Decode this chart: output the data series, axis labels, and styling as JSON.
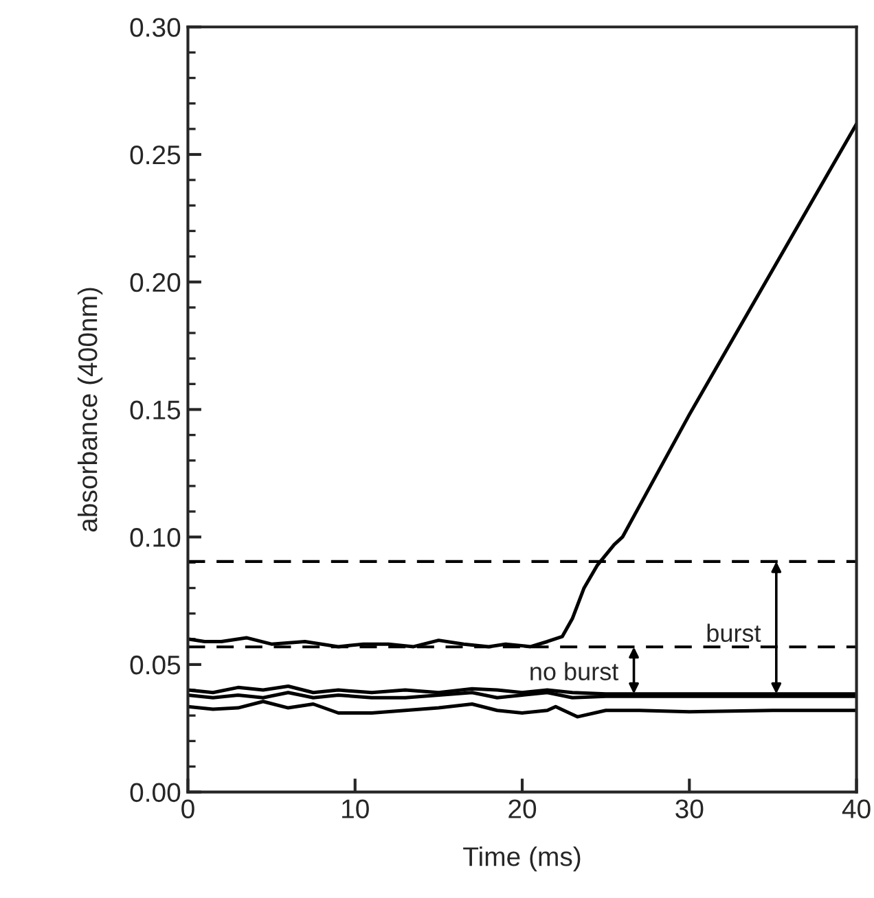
{
  "chart_data": {
    "type": "line",
    "xlabel": "Time (ms)",
    "ylabel": "absorbance (400nm)",
    "xlim": [
      0,
      40
    ],
    "ylim": [
      0,
      0.3
    ],
    "xticks": [
      0,
      10,
      20,
      30,
      40
    ],
    "yticks": [
      {
        "value": 0,
        "label": "0.00"
      },
      {
        "value": 0.05,
        "label": "0.05"
      },
      {
        "value": 0.1,
        "label": "0.10"
      },
      {
        "value": 0.15,
        "label": "0.15"
      },
      {
        "value": 0.2,
        "label": "0.20"
      },
      {
        "value": 0.25,
        "label": "0.25"
      },
      {
        "value": 0.3,
        "label": "0.30"
      }
    ],
    "grid": false,
    "marker": "none",
    "line_style": "solid",
    "series": [
      {
        "color": "#000000",
        "x": [
          0,
          1,
          2,
          3.5,
          5,
          7,
          9,
          10.5,
          12,
          13.5,
          15,
          16.5,
          18,
          19,
          20.5,
          21.5,
          22.4,
          23,
          23.7,
          24.5,
          25.5,
          26,
          27,
          30,
          35,
          40
        ],
        "values": [
          0.06,
          0.059,
          0.059,
          0.0605,
          0.058,
          0.059,
          0.057,
          0.058,
          0.058,
          0.057,
          0.0595,
          0.058,
          0.057,
          0.058,
          0.057,
          0.059,
          0.061,
          0.068,
          0.08,
          0.089,
          0.097,
          0.1,
          0.112,
          0.148,
          0.205,
          0.262
        ]
      },
      {
        "color": "#000000",
        "x": [
          0,
          1.5,
          3,
          4.5,
          6,
          7.5,
          9,
          11,
          13,
          15,
          17,
          18.5,
          20,
          21.5,
          23,
          25,
          27,
          30,
          35,
          40
        ],
        "values": [
          0.04,
          0.039,
          0.041,
          0.04,
          0.0415,
          0.039,
          0.04,
          0.039,
          0.04,
          0.039,
          0.0405,
          0.04,
          0.039,
          0.04,
          0.039,
          0.0385,
          0.0385,
          0.0385,
          0.0385,
          0.0385
        ]
      },
      {
        "color": "#000000",
        "x": [
          0,
          1.5,
          3,
          4.5,
          6,
          7.5,
          9,
          11,
          13,
          15,
          17,
          18.5,
          20,
          21.5,
          23,
          25,
          27,
          30,
          35,
          40
        ],
        "values": [
          0.038,
          0.037,
          0.038,
          0.037,
          0.039,
          0.037,
          0.038,
          0.037,
          0.037,
          0.038,
          0.039,
          0.037,
          0.038,
          0.039,
          0.037,
          0.0375,
          0.0375,
          0.0375,
          0.0375,
          0.0375
        ]
      },
      {
        "color": "#000000",
        "x": [
          0,
          1.5,
          3,
          4.5,
          6,
          7.5,
          9,
          11,
          13,
          15,
          17,
          18.5,
          20,
          21.5,
          22,
          23.3,
          25,
          27,
          30,
          35,
          40
        ],
        "values": [
          0.0335,
          0.0325,
          0.033,
          0.0355,
          0.033,
          0.0345,
          0.031,
          0.031,
          0.032,
          0.033,
          0.0345,
          0.032,
          0.031,
          0.032,
          0.0335,
          0.0295,
          0.032,
          0.032,
          0.0315,
          0.032,
          0.032
        ]
      }
    ],
    "ref_lines": [
      {
        "axis": "y",
        "value": 0.0904,
        "color": "#000000",
        "line_style": "dashed"
      },
      {
        "axis": "y",
        "value": 0.0569,
        "color": "#000000",
        "line_style": "dashed"
      }
    ],
    "annotations": [
      "burst",
      "no burst"
    ]
  }
}
